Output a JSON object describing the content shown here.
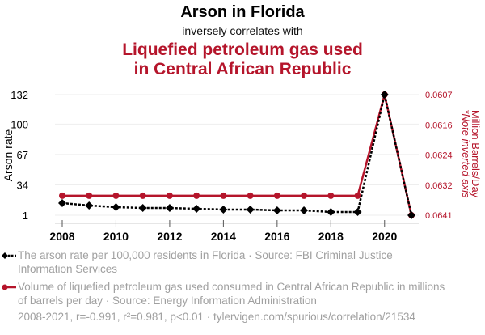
{
  "header": {
    "title": "Arson in Florida",
    "subtitle": "inversely correlates with",
    "title2_line1": "Liquefied petroleum gas used",
    "title2_line2": "in Central African Republic"
  },
  "colors": {
    "series1": "#000000",
    "series2": "#b5152b",
    "grid": "#eeeeee",
    "muted": "#a0a0a0"
  },
  "chart_data": {
    "type": "line",
    "title": "Arson in Florida inversely correlates with Liquefied petroleum gas used in Central African Republic",
    "x": [
      2008,
      2009,
      2010,
      2011,
      2012,
      2013,
      2014,
      2015,
      2016,
      2017,
      2018,
      2019,
      2020,
      2021
    ],
    "xticks": [
      "2008",
      "2010",
      "2012",
      "2014",
      "2016",
      "2018",
      "2020"
    ],
    "xlabel": "",
    "ylabel": "Arson rate",
    "ylabel_right": "Million Barrels/Day",
    "ylabel_right_note": "*Note inverted axis",
    "yticks": [
      "132",
      "100",
      "67",
      "34",
      "1"
    ],
    "yticks_right": [
      "0.0607",
      "0.0616",
      "0.0624",
      "0.0632",
      "0.0641"
    ],
    "ylim": [
      1,
      132
    ],
    "ylim_right": [
      0.0607,
      0.0641
    ],
    "right_axis_inverted": true,
    "grid": true,
    "series": [
      {
        "name": "The arson rate per 100,000 residents in Florida",
        "axis": "left",
        "style": "dotted-diamond",
        "values": [
          14.2,
          11.6,
          9.8,
          8.9,
          8.9,
          8.0,
          7.2,
          7.2,
          6.3,
          6.3,
          4.5,
          4.5,
          132,
          1
        ]
      },
      {
        "name": "Volume of liquefied petroleum gas used consumed in Central African Republic in millions of barrels per day",
        "axis": "right",
        "style": "solid-circle",
        "values": [
          0.06355,
          0.06355,
          0.06355,
          0.06355,
          0.06355,
          0.06355,
          0.06355,
          0.06355,
          0.06355,
          0.06355,
          0.06355,
          0.06355,
          0.0607,
          0.0641
        ]
      }
    ]
  },
  "legend": {
    "item1": "The arson rate per 100,000 residents in Florida · Source: FBI Criminal Justice Information Services",
    "item2": "Volume of liquefied petroleum gas used consumed in Central African Republic in millions of barrels per day · Source: Energy Information Administration"
  },
  "footer": "2008-2021, r=-0.991, r²=0.981, p<0.01 · tylervigen.com/spurious/correlation/21534"
}
